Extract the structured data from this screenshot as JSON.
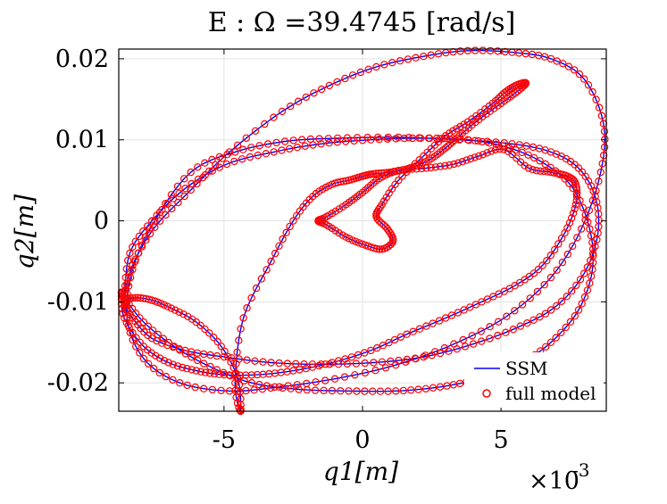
{
  "chart_data": {
    "type": "line",
    "title": "E : Ω =39.4745 [rad/s]",
    "xlabel": "q1[m]",
    "ylabel": "q2[m]",
    "x_multiplier_label": "×10",
    "x_multiplier_exponent": "-3",
    "xlim": [
      -8.8,
      8.8
    ],
    "ylim": [
      -0.0235,
      0.0212
    ],
    "xticks": [
      -5,
      0,
      5
    ],
    "xtick_labels": [
      "-5",
      "0",
      "5"
    ],
    "yticks": [
      -0.02,
      -0.01,
      0,
      0.01,
      0.02
    ],
    "ytick_labels": [
      "-0.02",
      "-0.01",
      "0",
      "0.01",
      "0.02"
    ],
    "grid": true,
    "legend_position": "bottom-right",
    "colors": {
      "ssm": "#0000ff",
      "full_model": "#ff0000",
      "grid": "#e3e3e3",
      "axes": "#000000"
    },
    "series": [
      {
        "name": "SSM",
        "style": "line",
        "x": [
          -8.6,
          -8.3,
          -7.5,
          -6.2,
          -4.8,
          -2.9,
          -1.2,
          0.5,
          2.2,
          3.8,
          5.4,
          6.8,
          8.0,
          8.7,
          8.6,
          7.9,
          6.8,
          5.2,
          3.3,
          1.2,
          -1.0,
          -3.0,
          -4.8,
          -6.6,
          -7.9,
          -8.5,
          -8.3,
          -7.5,
          -6.2,
          -4.6,
          -2.8,
          -0.9,
          1.3,
          3.5,
          5.4,
          6.8,
          7.8,
          8.4,
          8.5,
          8.0,
          7.0,
          5.7,
          4.0,
          2.2,
          0.4,
          -1.5,
          -3.3,
          -5.0,
          -6.4,
          -7.6,
          -8.3,
          -8.6,
          -8.2,
          -7.6,
          -6.9,
          -6.0,
          -5.1,
          -4.5,
          -4.4,
          -4.6,
          -4.3,
          -3.3,
          -2.5,
          -1.8,
          -1.1,
          -0.5,
          0.0,
          0.4,
          1.0,
          1.7,
          2.4,
          3.0,
          3.5,
          4.2,
          5.0,
          5.6,
          5.9,
          5.6,
          5.2,
          4.7,
          3.8,
          3.0,
          2.2,
          1.3,
          0.7,
          0.5,
          0.9,
          1.1,
          0.7,
          0.1,
          -0.6,
          -1.3,
          -1.6,
          -1.3,
          -0.6,
          0.0,
          0.6,
          1.3,
          2.3,
          3.3,
          4.2,
          5.1,
          6.0,
          6.8,
          7.4,
          7.7,
          7.7,
          7.3,
          6.5,
          5.5,
          4.3,
          3.0,
          1.6,
          0.3,
          -1.1,
          -2.5,
          -3.8,
          -5.0,
          -6.0,
          -7.0,
          -7.9,
          -8.6,
          -8.7,
          -8.6,
          -7.9,
          -6.8,
          -5.5,
          -4.0,
          -2.3,
          -0.5,
          1.2,
          2.8,
          4.2,
          5.6,
          6.8,
          7.8,
          8.3,
          8.2,
          7.6,
          6.6,
          5.3,
          3.8,
          2.1,
          0.3,
          -1.5,
          -3.2,
          -4.9,
          -6.4,
          -7.6,
          -8.4,
          -8.6
        ],
        "y": [
          -0.0095,
          -0.0055,
          -0.0008,
          0.0038,
          0.0085,
          0.0135,
          0.0167,
          0.019,
          0.0203,
          0.021,
          0.0208,
          0.02,
          0.0175,
          0.012,
          0.006,
          -0.001,
          -0.007,
          -0.0118,
          -0.0152,
          -0.0178,
          -0.0195,
          -0.0205,
          -0.021,
          -0.02,
          -0.017,
          -0.012,
          -0.006,
          0.0,
          0.006,
          0.0085,
          0.0098,
          0.0102,
          0.0103,
          0.01,
          0.0095,
          0.0085,
          0.0065,
          0.003,
          -0.0015,
          -0.0065,
          -0.0105,
          -0.013,
          -0.0152,
          -0.0168,
          -0.0175,
          -0.0177,
          -0.0175,
          -0.0168,
          -0.016,
          -0.0145,
          -0.012,
          -0.01,
          -0.0095,
          -0.0098,
          -0.0108,
          -0.0125,
          -0.0155,
          -0.0195,
          -0.0235,
          -0.02,
          -0.012,
          -0.005,
          0.0,
          0.003,
          0.0045,
          0.005,
          0.0055,
          0.0058,
          0.006,
          0.0065,
          0.0075,
          0.009,
          0.0105,
          0.0125,
          0.0145,
          0.016,
          0.017,
          0.0168,
          0.016,
          0.0145,
          0.0122,
          0.0105,
          0.008,
          0.005,
          0.002,
          0.0005,
          -0.001,
          -0.0025,
          -0.0035,
          -0.003,
          -0.002,
          -0.0005,
          0.0,
          0.0005,
          0.002,
          0.0035,
          0.0052,
          0.0062,
          0.0065,
          0.007,
          0.008,
          0.0088,
          0.0065,
          0.006,
          0.0055,
          0.0045,
          0.002,
          -0.0015,
          -0.0055,
          -0.008,
          -0.01,
          -0.012,
          -0.014,
          -0.016,
          -0.0175,
          -0.0185,
          -0.019,
          -0.019,
          -0.0185,
          -0.0175,
          -0.0155,
          -0.012,
          -0.009,
          -0.0095,
          -0.0125,
          -0.0155,
          -0.018,
          -0.02,
          -0.0208,
          -0.021,
          -0.021,
          -0.0205,
          -0.0195,
          -0.0178,
          -0.015,
          -0.011,
          -0.006,
          -0.001,
          0.004,
          0.007,
          0.009,
          0.01,
          0.0102,
          0.01,
          0.0095,
          0.0085,
          0.007,
          0.004,
          0.0,
          -0.004,
          -0.0095
        ]
      },
      {
        "name": "full model",
        "style": "markers",
        "same_as_series": "SSM"
      }
    ]
  }
}
